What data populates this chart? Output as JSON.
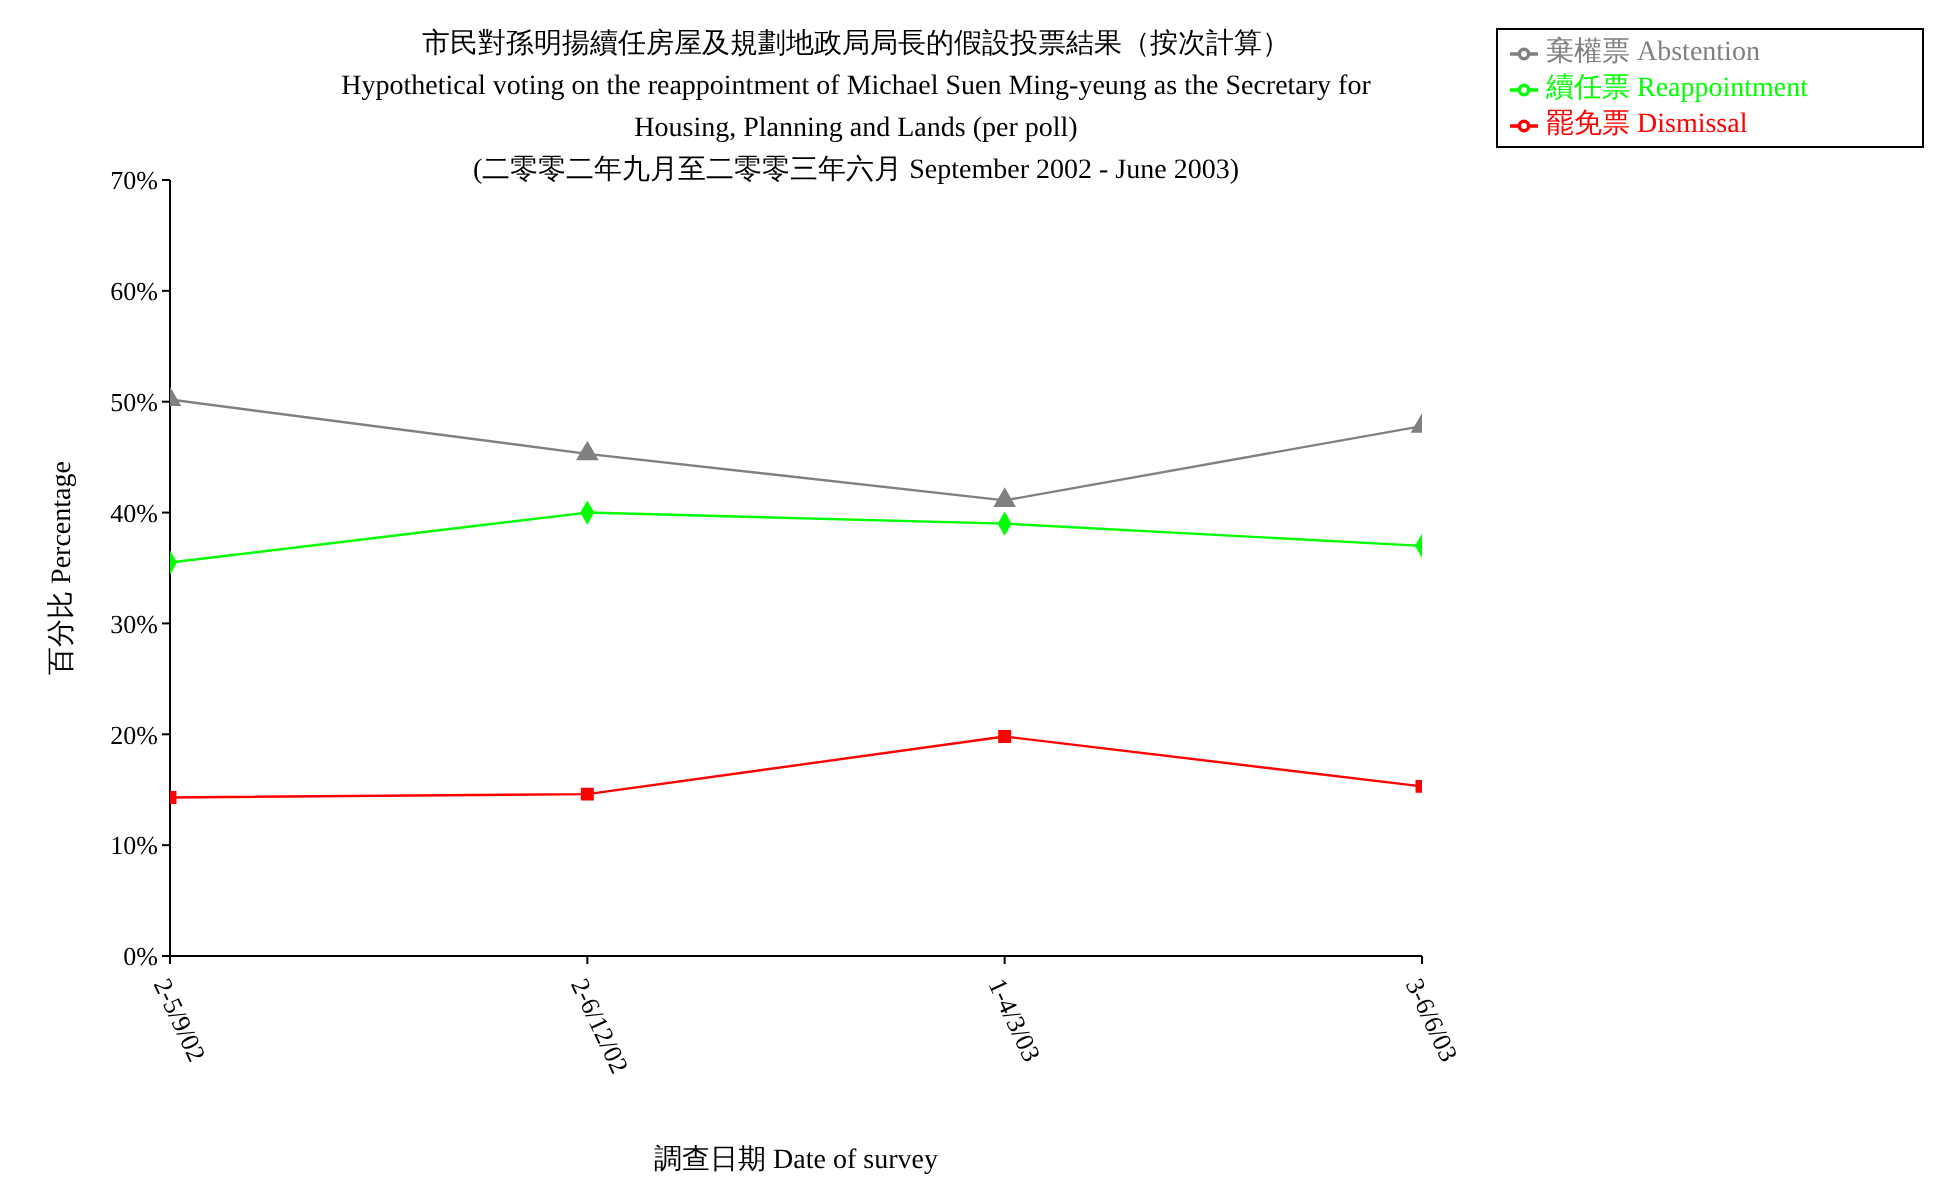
{
  "chart_data": {
    "type": "line",
    "title": "市民對孫明揚續任房屋及規劃地政局局長的假設投票結果（按次計算）",
    "subtitle": "Hypothetical voting on the reappointment of Michael Suen Ming-yeung as the Secretary for Housing, Planning and Lands (per poll)",
    "annotations": [
      "(二零零二年九月至二零零三年六月 September 2002 - June 2003)"
    ],
    "xlabel": "調查日期 Date of survey",
    "ylabel": "百分比 Percentage",
    "categories": [
      "2-5/9/02",
      "2-6/12/02",
      "1-4/3/03",
      "3-6/6/03"
    ],
    "series": [
      {
        "name": "續任票 Reappointment",
        "color": "#00ff00",
        "marker": "diamond",
        "values": [
          35.5,
          40.0,
          39.0,
          37.0
        ]
      },
      {
        "name": "罷免票 Dismissal",
        "color": "#ff0000",
        "marker": "square",
        "values": [
          14.3,
          14.6,
          19.8,
          15.3
        ]
      },
      {
        "name": "棄權票 Abstention",
        "color": "#808080",
        "marker": "triangle",
        "values": [
          50.2,
          45.3,
          41.1,
          47.8
        ]
      }
    ],
    "ylim": [
      0,
      70
    ],
    "yticks": [
      {
        "value": 0,
        "label": "0%"
      },
      {
        "value": 10,
        "label": "10%"
      },
      {
        "value": 20,
        "label": "20%"
      },
      {
        "value": 30,
        "label": "30%"
      },
      {
        "value": 40,
        "label": "40%"
      },
      {
        "value": 50,
        "label": "50%"
      },
      {
        "value": 60,
        "label": "60%"
      },
      {
        "value": 70,
        "label": "70%"
      }
    ],
    "grid": false,
    "legend": "top right"
  }
}
